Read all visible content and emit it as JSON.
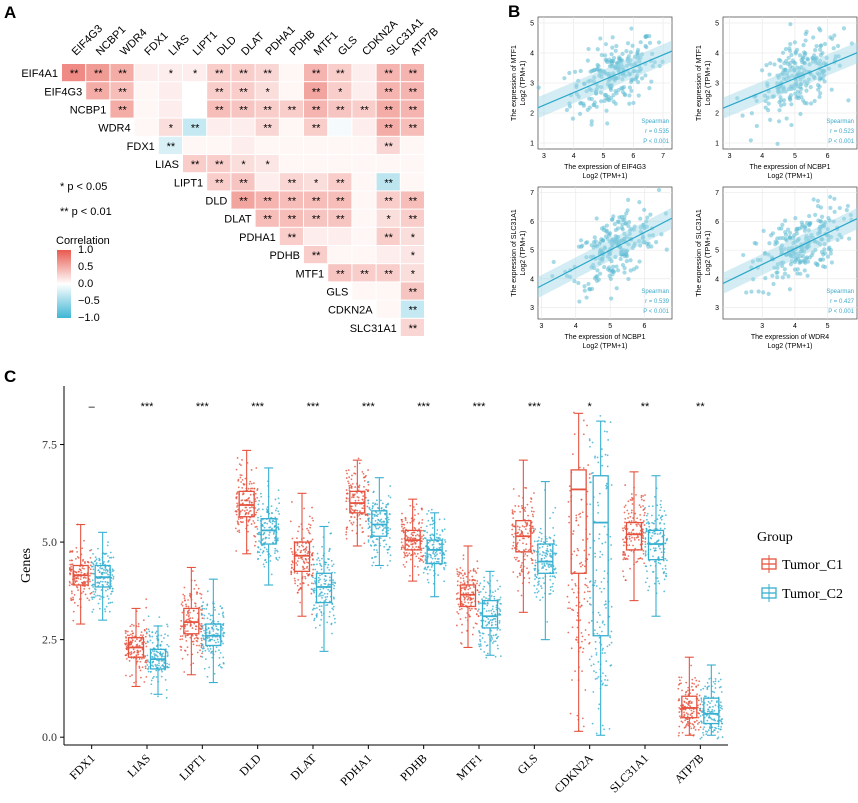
{
  "panel_letters": [
    "A",
    "B",
    "C"
  ],
  "chart_data": [
    {
      "panel": "A",
      "type": "heatmap",
      "title": "",
      "genes": [
        "EIF4A1",
        "EIF4G3",
        "NCBP1",
        "WDR4",
        "FDX1",
        "LIAS",
        "LIPT1",
        "DLD",
        "DLAT",
        "PDHA1",
        "PDHB",
        "MTF1",
        "GLS",
        "CDKN2A",
        "SLC31A1",
        "ATP7B"
      ],
      "note": "Upper-triangular matrix. Row i (genes[i], i=0..14) has cells for columns genes[i+1..15]. r = approximate correlation, sig = significance stars.",
      "rows": [
        {
          "gene": "EIF4A1",
          "r": [
            0.7,
            0.6,
            0.5,
            0.1,
            0.1,
            0.1,
            0.3,
            0.3,
            0.25,
            0.05,
            0.45,
            0.3,
            0.1,
            0.45,
            0.45
          ],
          "sig": [
            "**",
            "**",
            "**",
            "",
            "*",
            "*",
            "**",
            "**",
            "**",
            "",
            "**",
            "**",
            "",
            "**",
            "**"
          ]
        },
        {
          "gene": "EIF4G3",
          "r": [
            0.5,
            0.4,
            0.05,
            0.1,
            0.0,
            0.3,
            0.3,
            0.2,
            0.05,
            0.55,
            0.3,
            0.1,
            0.45,
            0.45
          ],
          "sig": [
            "**",
            "**",
            "",
            "",
            "",
            "**",
            "**",
            "*",
            "",
            "**",
            "*",
            "",
            "**",
            "**"
          ]
        },
        {
          "gene": "NCBP1",
          "r": [
            0.5,
            0.05,
            0.1,
            0.0,
            0.4,
            0.35,
            0.3,
            0.3,
            0.45,
            0.35,
            0.3,
            0.5,
            0.45
          ],
          "sig": [
            "**",
            "",
            "",
            "",
            "**",
            "**",
            "**",
            "**",
            "**",
            "**",
            "**",
            "**",
            "**"
          ]
        },
        {
          "gene": "WDR4",
          "r": [
            0.05,
            0.2,
            -0.3,
            0.1,
            0.1,
            0.25,
            0.05,
            0.3,
            -0.05,
            0.1,
            0.5,
            0.4
          ],
          "sig": [
            "",
            "*",
            "**",
            "",
            "",
            "**",
            "",
            "**",
            "",
            "",
            "**",
            "**"
          ]
        },
        {
          "gene": "FDX1",
          "r": [
            -0.2,
            0.05,
            0.05,
            0.1,
            0.05,
            0.05,
            0.05,
            0.05,
            0.05,
            0.25,
            0.05
          ],
          "sig": [
            "**",
            "",
            "",
            "",
            "",
            "",
            "",
            "",
            "",
            "**",
            ""
          ]
        },
        {
          "gene": "LIAS",
          "r": [
            0.3,
            0.3,
            0.2,
            0.15,
            0.05,
            0.05,
            0.05,
            0.05,
            0.05,
            0.05
          ],
          "sig": [
            "**",
            "**",
            "*",
            "*",
            "",
            "",
            "",
            "",
            "",
            ""
          ]
        },
        {
          "gene": "LIPT1",
          "r": [
            0.3,
            0.35,
            0.1,
            0.25,
            0.2,
            0.3,
            0.05,
            -0.35,
            0.05
          ],
          "sig": [
            "**",
            "**",
            "",
            "**",
            "*",
            "**",
            "",
            "**",
            ""
          ]
        },
        {
          "gene": "DLD",
          "r": [
            0.55,
            0.45,
            0.4,
            0.4,
            0.4,
            0.05,
            0.3,
            0.4
          ],
          "sig": [
            "**",
            "**",
            "**",
            "**",
            "**",
            "",
            "**",
            "**"
          ]
        },
        {
          "gene": "DLAT",
          "r": [
            0.4,
            0.4,
            0.35,
            0.35,
            0.05,
            0.2,
            0.3
          ],
          "sig": [
            "**",
            "**",
            "**",
            "**",
            "",
            "*",
            "**"
          ]
        },
        {
          "gene": "PDHA1",
          "r": [
            0.3,
            0.1,
            0.1,
            0.05,
            0.3,
            0.2
          ],
          "sig": [
            "**",
            "",
            "",
            "",
            "**",
            "*"
          ]
        },
        {
          "gene": "PDHB",
          "r": [
            0.3,
            0.05,
            0.05,
            0.1,
            0.15
          ],
          "sig": [
            "**",
            "",
            "",
            "",
            "*"
          ]
        },
        {
          "gene": "MTF1",
          "r": [
            0.35,
            0.3,
            0.3,
            0.2
          ],
          "sig": [
            "**",
            "**",
            "**",
            "*"
          ]
        },
        {
          "gene": "GLS",
          "r": [
            0.05,
            0.05,
            0.35
          ],
          "sig": [
            "",
            "",
            "**"
          ]
        },
        {
          "gene": "CDKN2A",
          "r": [
            0.05,
            -0.3
          ],
          "sig": [
            "",
            "**"
          ]
        },
        {
          "gene": "SLC31A1",
          "r": [
            0.25
          ],
          "sig": [
            "**"
          ]
        }
      ],
      "significance_legend": [
        "* p < 0.05",
        "** p < 0.01"
      ],
      "colorbar": {
        "title": "Correlation",
        "ticks": [
          "1.0",
          "0.5",
          "0.0",
          "−0.5",
          "−1.0"
        ],
        "range": [
          -1,
          1
        ],
        "colors": {
          "high": "#e8594f",
          "mid": "#ffffff",
          "low": "#3fb6d4"
        }
      }
    },
    {
      "panel": "B",
      "type": "scatter",
      "plots": [
        {
          "ylabel": "The expression of MTF1",
          "ylabel2": "Log2 (TPM+1)",
          "xlabel": "The expression of EIF4G3",
          "xlabel2": "Log2 (TPM+1)",
          "xlim": [
            2.8,
            7.3
          ],
          "ylim": [
            0.8,
            5.2
          ],
          "xticks": [
            "3",
            "4",
            "5",
            "6",
            "7"
          ],
          "yticks": [
            "1",
            "2",
            "3",
            "4",
            "5"
          ],
          "method": "Spearman",
          "r": "r = 0.535",
          "p": "P < 0.001",
          "slope": 0.42,
          "intercept": 1.0
        },
        {
          "ylabel": "The expression of MTF1",
          "ylabel2": "Log2 (TPM+1)",
          "xlabel": "The expression of NCBP1",
          "xlabel2": "Log2 (TPM+1)",
          "xlim": [
            2.8,
            6.9
          ],
          "ylim": [
            0.8,
            5.2
          ],
          "xticks": [
            "3",
            "4",
            "5",
            "6"
          ],
          "yticks": [
            "1",
            "2",
            "3",
            "4",
            "5"
          ],
          "method": "Spearman",
          "r": "r = 0.523",
          "p": "P < 0.001",
          "slope": 0.45,
          "intercept": 0.9
        },
        {
          "ylabel": "The expression of SLC31A1",
          "ylabel2": "Log2 (TPM+1)",
          "xlabel": "The expression of NCBP1",
          "xlabel2": "Log2 (TPM+1)",
          "xlim": [
            2.9,
            6.8
          ],
          "ylim": [
            2.6,
            7.2
          ],
          "xticks": [
            "3",
            "4",
            "5",
            "6"
          ],
          "yticks": [
            "3",
            "4",
            "5",
            "6",
            "7"
          ],
          "method": "Spearman",
          "r": "r = 0.539",
          "p": "P < 0.001",
          "slope": 0.62,
          "intercept": 1.9
        },
        {
          "ylabel": "The expression of SLC31A1",
          "ylabel2": "Log2 (TPM+1)",
          "xlabel": "The expression of WDR4",
          "xlabel2": "Log2 (TPM+1)",
          "xlim": [
            1.8,
            5.9
          ],
          "ylim": [
            2.6,
            7.2
          ],
          "xticks": [
            "3",
            "4",
            "5"
          ],
          "yticks": [
            "3",
            "4",
            "5",
            "6",
            "7"
          ],
          "method": "Spearman",
          "r": "r = 0.427",
          "p": "P < 0.001",
          "slope": 0.55,
          "intercept": 2.85
        }
      ]
    },
    {
      "panel": "C",
      "type": "box",
      "ylabel": "Genes",
      "ylim": [
        -0.2,
        9.0
      ],
      "yticks": [
        0.0,
        2.5,
        5.0,
        7.5
      ],
      "ytick_labels": [
        "0.0",
        "2.5",
        "5.0",
        "7.5"
      ],
      "categories": [
        "FDX1",
        "LIAS",
        "LIPT1",
        "DLD",
        "DLAT",
        "PDHA1",
        "PDHB",
        "MTF1",
        "GLS",
        "CDKN2A",
        "SLC31A1",
        "ATP7B"
      ],
      "significance": [
        "–",
        "***",
        "***",
        "***",
        "***",
        "***",
        "***",
        "***",
        "***",
        "*",
        "**",
        "**"
      ],
      "legend_title": "Group",
      "series": [
        {
          "name": "Tumor_C1",
          "color": "#e5533f",
          "boxes": [
            {
              "min": 2.9,
              "q1": 3.9,
              "median": 4.15,
              "q3": 4.4,
              "max": 5.45
            },
            {
              "min": 1.3,
              "q1": 2.05,
              "median": 2.3,
              "q3": 2.55,
              "max": 3.3
            },
            {
              "min": 1.6,
              "q1": 2.65,
              "median": 2.95,
              "q3": 3.3,
              "max": 4.35
            },
            {
              "min": 4.7,
              "q1": 5.65,
              "median": 5.95,
              "q3": 6.3,
              "max": 7.35
            },
            {
              "min": 3.1,
              "q1": 4.25,
              "median": 4.65,
              "q3": 5.0,
              "max": 6.25
            },
            {
              "min": 4.9,
              "q1": 5.75,
              "median": 6.0,
              "q3": 6.3,
              "max": 7.1
            },
            {
              "min": 4.0,
              "q1": 4.8,
              "median": 5.05,
              "q3": 5.3,
              "max": 6.1
            },
            {
              "min": 2.3,
              "q1": 3.35,
              "median": 3.65,
              "q3": 3.9,
              "max": 4.9
            },
            {
              "min": 3.2,
              "q1": 4.75,
              "median": 5.15,
              "q3": 5.55,
              "max": 7.1
            },
            {
              "min": 0.15,
              "q1": 4.2,
              "median": 6.35,
              "q3": 6.85,
              "max": 8.3
            },
            {
              "min": 3.5,
              "q1": 4.8,
              "median": 5.2,
              "q3": 5.5,
              "max": 6.8
            },
            {
              "min": 0.05,
              "q1": 0.5,
              "median": 0.75,
              "q3": 1.05,
              "max": 2.05
            }
          ]
        },
        {
          "name": "Tumor_C2",
          "color": "#37afd0",
          "boxes": [
            {
              "min": 3.0,
              "q1": 3.85,
              "median": 4.1,
              "q3": 4.4,
              "max": 5.25
            },
            {
              "min": 1.1,
              "q1": 1.75,
              "median": 2.0,
              "q3": 2.25,
              "max": 2.85
            },
            {
              "min": 1.4,
              "q1": 2.35,
              "median": 2.6,
              "q3": 2.9,
              "max": 4.05
            },
            {
              "min": 3.9,
              "q1": 4.95,
              "median": 5.3,
              "q3": 5.6,
              "max": 6.9
            },
            {
              "min": 2.2,
              "q1": 3.45,
              "median": 3.85,
              "q3": 4.2,
              "max": 5.4
            },
            {
              "min": 4.4,
              "q1": 5.15,
              "median": 5.45,
              "q3": 5.8,
              "max": 6.65
            },
            {
              "min": 3.6,
              "q1": 4.45,
              "median": 4.8,
              "q3": 5.05,
              "max": 5.75
            },
            {
              "min": 2.1,
              "q1": 2.8,
              "median": 3.1,
              "q3": 3.5,
              "max": 4.25
            },
            {
              "min": 2.5,
              "q1": 4.2,
              "median": 4.5,
              "q3": 4.95,
              "max": 6.55
            },
            {
              "min": 0.05,
              "q1": 2.6,
              "median": 5.5,
              "q3": 6.7,
              "max": 8.1
            },
            {
              "min": 3.1,
              "q1": 4.55,
              "median": 4.95,
              "q3": 5.3,
              "max": 6.7
            },
            {
              "min": 0.05,
              "q1": 0.35,
              "median": 0.6,
              "q3": 1.0,
              "max": 1.85
            }
          ]
        }
      ]
    }
  ]
}
